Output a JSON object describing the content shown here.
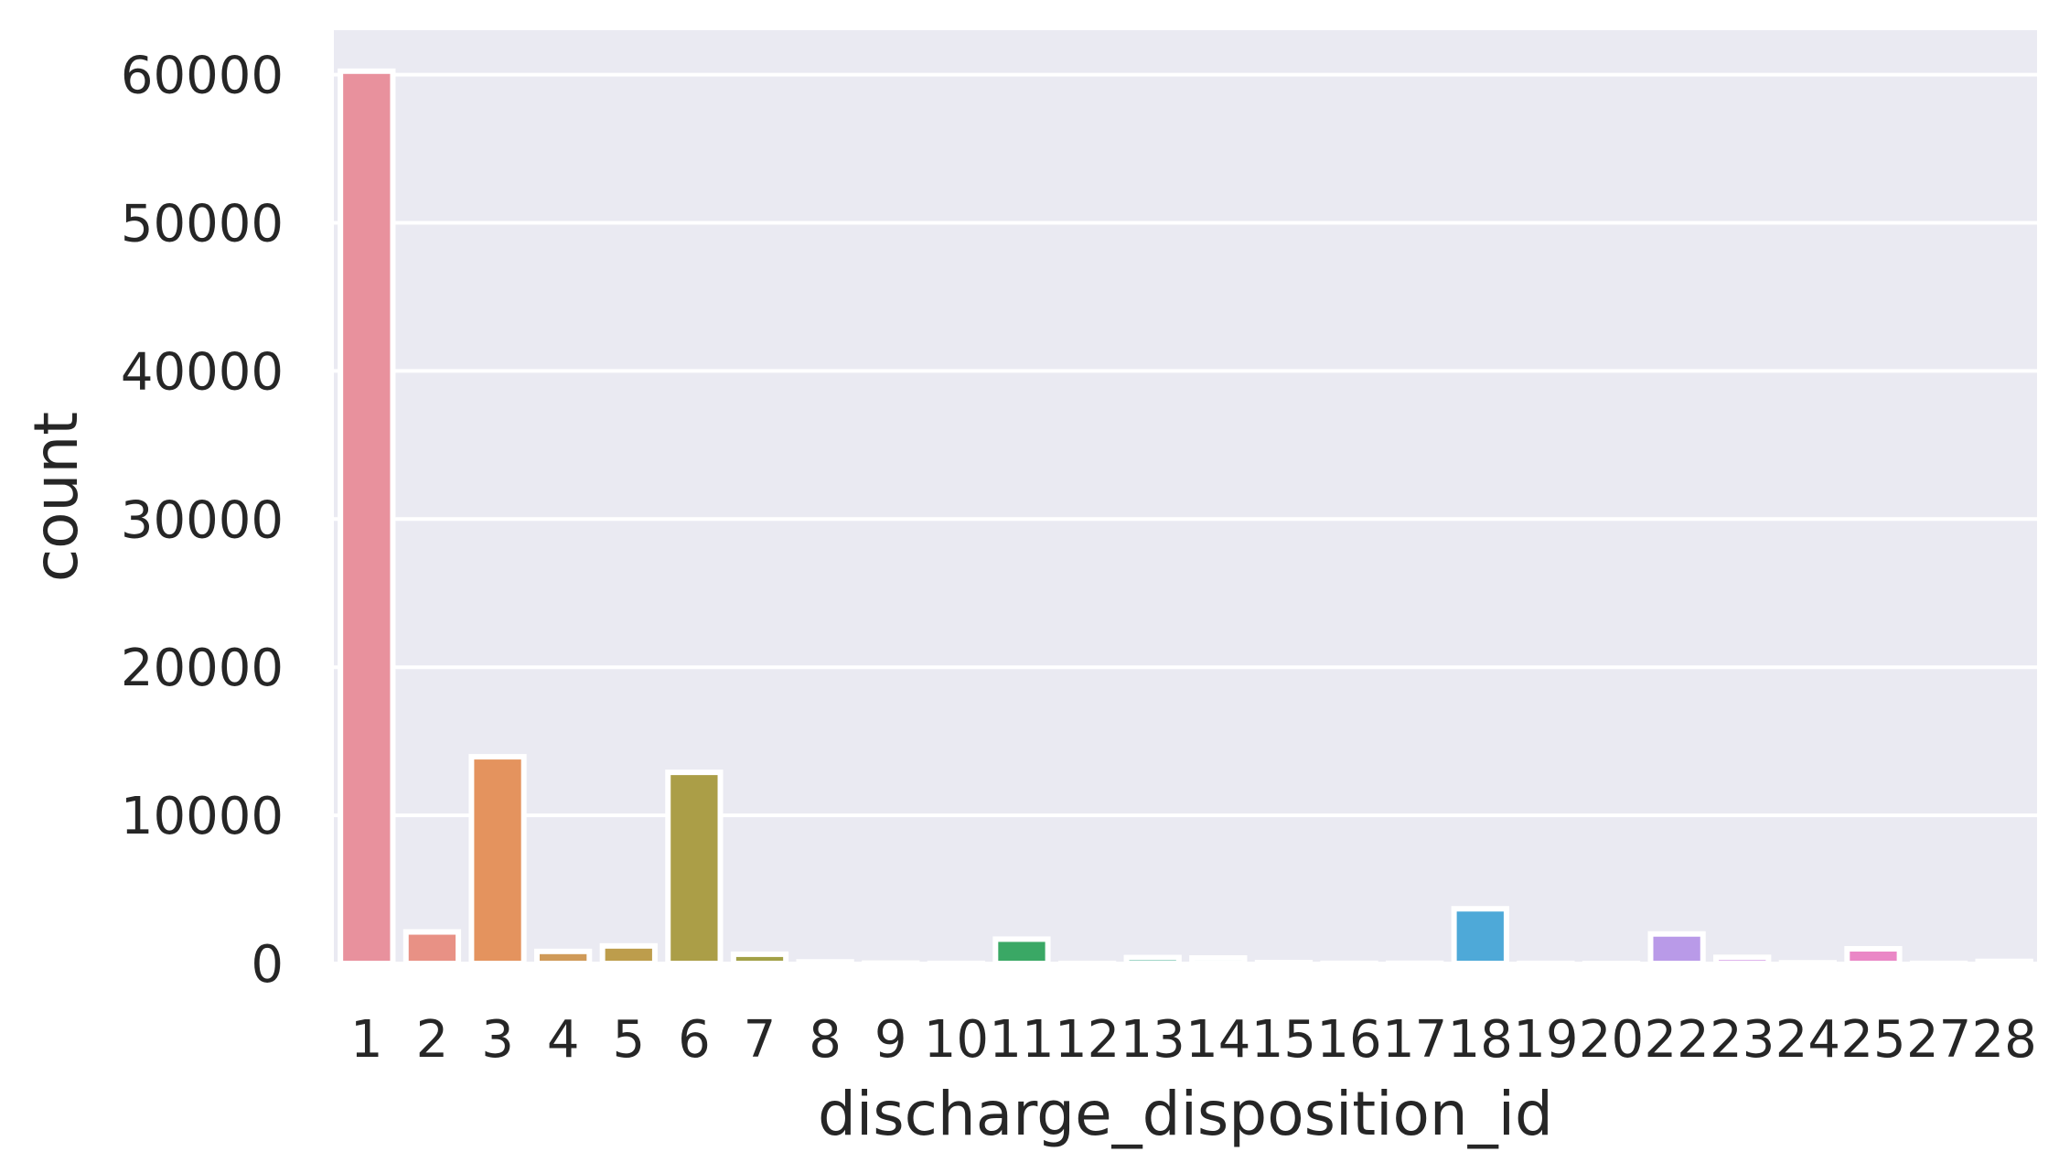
{
  "chart_data": {
    "type": "bar",
    "xlabel": "discharge_disposition_id",
    "ylabel": "count",
    "ylim": [
      0,
      63000
    ],
    "yticks": [
      0,
      10000,
      20000,
      30000,
      40000,
      50000,
      60000
    ],
    "ytick_labels": [
      "0",
      "10000",
      "20000",
      "30000",
      "40000",
      "50000",
      "60000"
    ],
    "grid": true,
    "categories": [
      "1",
      "2",
      "3",
      "4",
      "5",
      "6",
      "7",
      "8",
      "9",
      "10",
      "11",
      "12",
      "13",
      "14",
      "15",
      "16",
      "17",
      "18",
      "19",
      "20",
      "22",
      "23",
      "24",
      "25",
      "27",
      "28"
    ],
    "values": [
      60234,
      2128,
      13954,
      815,
      1184,
      12902,
      623,
      108,
      21,
      6,
      1642,
      3,
      399,
      372,
      63,
      11,
      14,
      3691,
      8,
      2,
      1993,
      412,
      48,
      989,
      5,
      139
    ],
    "colors": [
      "#e8919d",
      "#e89185",
      "#e4935e",
      "#cf9a58",
      "#bd9d4c",
      "#ab9e47",
      "#a2a047",
      "#91a347",
      "#7fa84a",
      "#4daa57",
      "#3aa865",
      "#38a77a",
      "#37a78a",
      "#38a799",
      "#39a5a6",
      "#3ca4b4",
      "#3da3c3",
      "#4ea9d8",
      "#8eacee",
      "#a7a2f0",
      "#b99ae8",
      "#cf91e2",
      "#df8dd8",
      "#ea87c6",
      "#ee8aae",
      "#ee8ba0"
    ]
  }
}
